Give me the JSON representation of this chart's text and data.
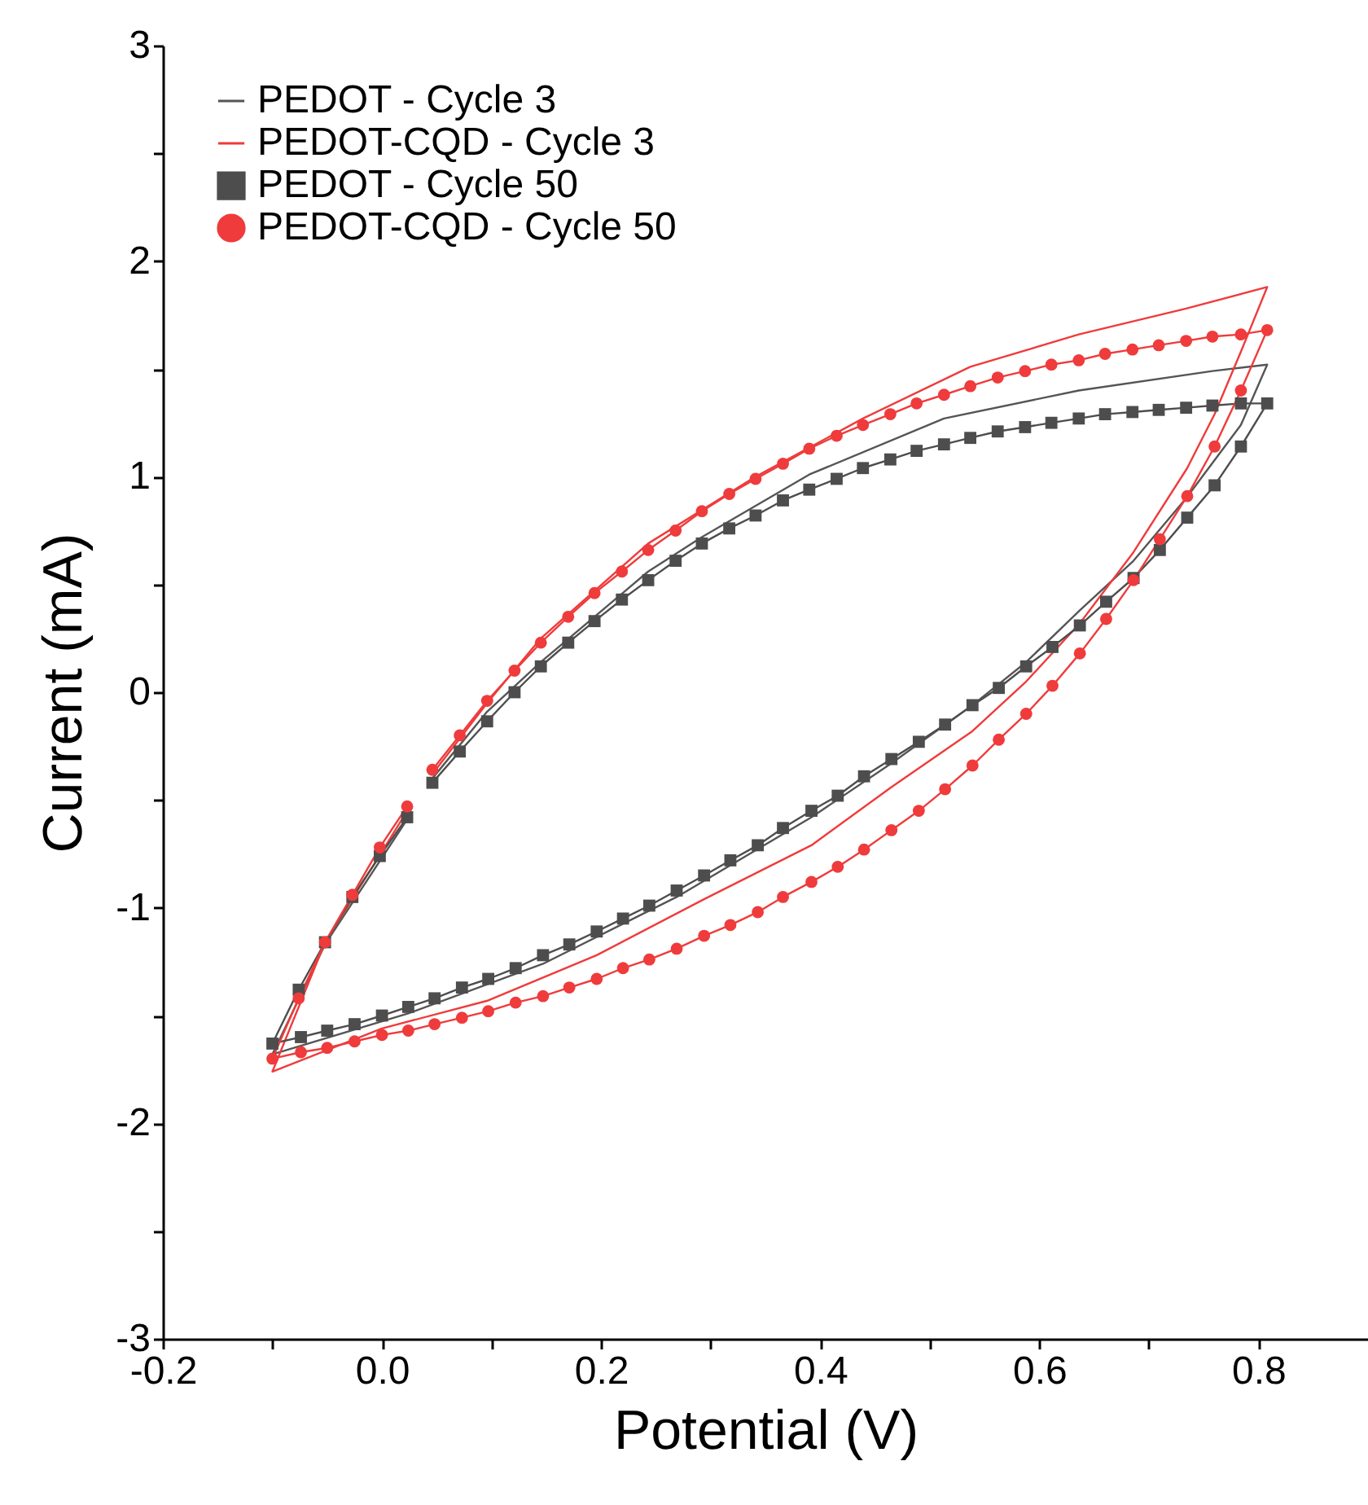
{
  "chart_data": {
    "type": "line",
    "xlabel": "Potential (V)",
    "ylabel": "Current (mA)",
    "xlim": [
      -0.2,
      0.9
    ],
    "ylim": [
      -3,
      3
    ],
    "xticks": [
      {
        "value": -0.2,
        "label": "-0.2"
      },
      {
        "value": -0.1,
        "label": null
      },
      {
        "value": 0,
        "label": "0.0"
      },
      {
        "value": 0.1,
        "label": null
      },
      {
        "value": 0.2,
        "label": "0.2"
      },
      {
        "value": 0.3,
        "label": null
      },
      {
        "value": 0.4,
        "label": "0.4"
      },
      {
        "value": 0.5,
        "label": null
      },
      {
        "value": 0.6,
        "label": "0.6"
      },
      {
        "value": 0.7,
        "label": null
      },
      {
        "value": 0.8,
        "label": "0.8"
      }
    ],
    "yticks": [
      -3,
      {
        "value": -2.5,
        "label": null
      },
      -2,
      {
        "value": -1.5,
        "label": null
      },
      -1,
      {
        "value": -0.5,
        "label": null
      },
      0,
      {
        "value": 0.5,
        "label": null
      },
      1,
      {
        "value": 1.5,
        "label": null
      },
      2,
      {
        "value": 2.5,
        "label": null
      },
      3
    ],
    "legend": "top left",
    "series": [
      {
        "name": "PEDOT - Cycle 3",
        "color": "#555555",
        "marker": "none",
        "x": [
          0.046,
          0.096,
          0.145,
          0.243,
          0.292,
          0.39,
          0.513,
          0.636,
          0.758,
          0.808,
          0.784,
          0.734,
          0.686,
          0.637,
          0.588,
          0.539,
          0.465,
          0.392,
          0.269,
          0.147,
          0.024,
          -0.1,
          -0.052,
          0.023
        ],
        "values": [
          -0.4,
          -0.09,
          0.14,
          0.56,
          0.72,
          1.01,
          1.27,
          1.4,
          1.49,
          1.52,
          1.24,
          0.9,
          0.61,
          0.38,
          0.14,
          -0.06,
          -0.33,
          -0.58,
          -0.95,
          -1.26,
          -1.49,
          -1.68,
          -1.17,
          -0.59
        ]
      },
      {
        "name": "PEDOT-CQD - Cycle 3",
        "color": "#ef3b3b",
        "marker": "none",
        "x": [
          0.046,
          0.096,
          0.145,
          0.243,
          0.341,
          0.439,
          0.537,
          0.636,
          0.734,
          0.808,
          0.784,
          0.76,
          0.735,
          0.686,
          0.637,
          0.588,
          0.539,
          0.465,
          0.392,
          0.294,
          0.196,
          0.097,
          0.0,
          -0.1,
          -0.052,
          0.0,
          0.023
        ],
        "values": [
          -0.38,
          -0.05,
          0.25,
          0.69,
          1.0,
          1.27,
          1.51,
          1.66,
          1.78,
          1.88,
          1.58,
          1.29,
          1.04,
          0.65,
          0.32,
          0.05,
          -0.18,
          -0.44,
          -0.71,
          -0.96,
          -1.22,
          -1.43,
          -1.56,
          -1.76,
          -1.16,
          -0.74,
          -0.55
        ]
      },
      {
        "name": "PEDOT - Cycle 50",
        "color": "#4d4d4d",
        "marker": "square",
        "x": [
          0.046,
          0.071,
          0.096,
          0.121,
          0.145,
          0.17,
          0.194,
          0.219,
          0.243,
          0.268,
          0.292,
          0.317,
          0.341,
          0.366,
          0.39,
          0.415,
          0.439,
          0.464,
          0.488,
          0.513,
          0.537,
          0.562,
          0.587,
          0.611,
          0.636,
          0.66,
          0.685,
          0.709,
          0.734,
          0.758,
          0.784,
          0.808,
          0.784,
          0.76,
          0.735,
          0.71,
          0.686,
          0.661,
          0.637,
          0.612,
          0.588,
          0.563,
          0.539,
          0.514,
          0.49,
          0.465,
          0.44,
          0.416,
          0.392,
          0.366,
          0.343,
          0.318,
          0.294,
          0.269,
          0.244,
          0.22,
          0.196,
          0.171,
          0.147,
          0.122,
          0.097,
          0.073,
          0.048,
          0.024,
          0.0,
          -0.025,
          -0.05,
          -0.074,
          -0.1,
          -0.076,
          -0.052,
          -0.027,
          -0.002,
          0.023
        ],
        "values": [
          -0.42,
          -0.275,
          -0.135,
          0.0,
          0.12,
          0.23,
          0.33,
          0.43,
          0.52,
          0.61,
          0.69,
          0.76,
          0.82,
          0.89,
          0.94,
          0.99,
          1.04,
          1.08,
          1.12,
          1.15,
          1.18,
          1.21,
          1.23,
          1.25,
          1.27,
          1.29,
          1.3,
          1.31,
          1.32,
          1.33,
          1.34,
          1.34,
          1.14,
          0.96,
          0.81,
          0.66,
          0.53,
          0.42,
          0.31,
          0.21,
          0.12,
          0.02,
          -0.06,
          -0.15,
          -0.23,
          -0.31,
          -0.39,
          -0.48,
          -0.55,
          -0.63,
          -0.71,
          -0.78,
          -0.85,
          -0.92,
          -0.99,
          -1.05,
          -1.11,
          -1.17,
          -1.22,
          -1.28,
          -1.33,
          -1.37,
          -1.42,
          -1.46,
          -1.5,
          -1.54,
          -1.57,
          -1.6,
          -1.63,
          -1.38,
          -1.16,
          -0.95,
          -0.76,
          -0.58
        ]
      },
      {
        "name": "PEDOT-CQD - Cycle 50",
        "color": "#ef3b3b",
        "marker": "circle",
        "x": [
          0.046,
          0.071,
          0.096,
          0.121,
          0.145,
          0.17,
          0.194,
          0.219,
          0.243,
          0.268,
          0.292,
          0.317,
          0.341,
          0.366,
          0.39,
          0.415,
          0.439,
          0.464,
          0.488,
          0.513,
          0.537,
          0.562,
          0.587,
          0.611,
          0.636,
          0.66,
          0.685,
          0.709,
          0.734,
          0.758,
          0.784,
          0.808,
          0.784,
          0.76,
          0.735,
          0.71,
          0.686,
          0.661,
          0.637,
          0.612,
          0.588,
          0.563,
          0.539,
          0.514,
          0.49,
          0.465,
          0.44,
          0.416,
          0.392,
          0.366,
          0.343,
          0.318,
          0.294,
          0.269,
          0.244,
          0.22,
          0.196,
          0.171,
          0.147,
          0.122,
          0.097,
          0.073,
          0.048,
          0.024,
          0.0,
          -0.025,
          -0.05,
          -0.074,
          -0.1,
          -0.076,
          -0.052,
          -0.027,
          -0.002,
          0.023
        ],
        "values": [
          -0.36,
          -0.2,
          -0.04,
          0.1,
          0.23,
          0.35,
          0.46,
          0.56,
          0.66,
          0.75,
          0.84,
          0.92,
          0.99,
          1.06,
          1.13,
          1.19,
          1.24,
          1.29,
          1.34,
          1.38,
          1.42,
          1.46,
          1.49,
          1.52,
          1.54,
          1.57,
          1.59,
          1.61,
          1.63,
          1.65,
          1.66,
          1.68,
          1.4,
          1.14,
          0.91,
          0.71,
          0.52,
          0.34,
          0.18,
          0.03,
          -0.1,
          -0.22,
          -0.34,
          -0.45,
          -0.55,
          -0.64,
          -0.73,
          -0.81,
          -0.88,
          -0.95,
          -1.02,
          -1.08,
          -1.13,
          -1.19,
          -1.24,
          -1.28,
          -1.33,
          -1.37,
          -1.41,
          -1.44,
          -1.48,
          -1.51,
          -1.54,
          -1.57,
          -1.59,
          -1.62,
          -1.65,
          -1.67,
          -1.7,
          -1.42,
          -1.16,
          -0.94,
          -0.72,
          -0.53
        ]
      }
    ]
  }
}
